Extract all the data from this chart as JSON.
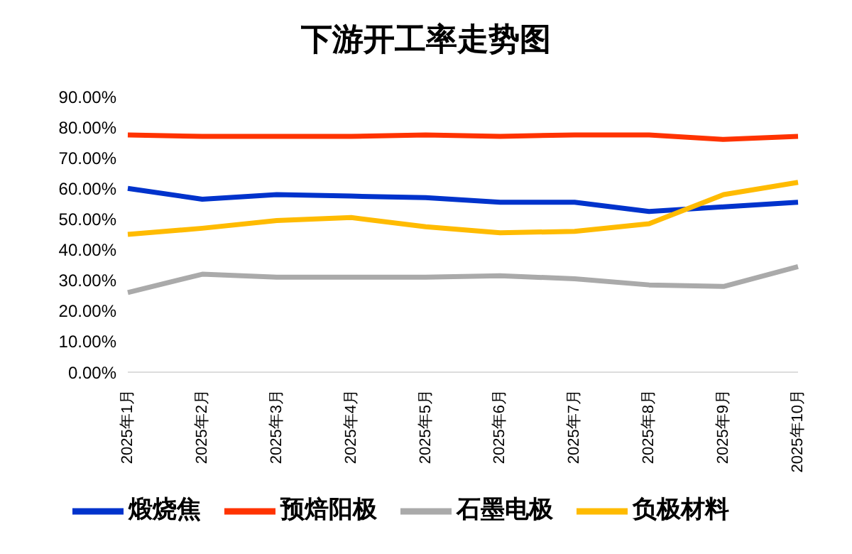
{
  "chart_data": {
    "type": "line",
    "title": "下游开工率走势图",
    "categories": [
      "2025年1月",
      "2025年2月",
      "2025年3月",
      "2025年4月",
      "2025年5月",
      "2025年6月",
      "2025年7月",
      "2025年8月",
      "2025年9月",
      "2025年10月"
    ],
    "series": [
      {
        "name": "煅烧焦",
        "color": "#0033cc",
        "values": [
          60,
          56.5,
          58,
          57.5,
          57,
          55.5,
          55.5,
          52.5,
          54,
          55.5
        ]
      },
      {
        "name": "预焙阳极",
        "color": "#ff3300",
        "values": [
          77.5,
          77,
          77,
          77,
          77.5,
          77,
          77.5,
          77.5,
          76,
          77
        ]
      },
      {
        "name": "石墨电极",
        "color": "#aaaaaa",
        "values": [
          26,
          32,
          31,
          31,
          31,
          31.5,
          30.5,
          28.5,
          28,
          34.5
        ]
      },
      {
        "name": "负极材料",
        "color": "#ffbb00",
        "values": [
          45,
          47,
          49.5,
          50.5,
          47.5,
          45.5,
          46,
          48.5,
          58,
          62
        ]
      }
    ],
    "ylim": [
      0,
      90
    ],
    "yticks": [
      {
        "value": 0,
        "label": "0.00%"
      },
      {
        "value": 10,
        "label": "10.00%"
      },
      {
        "value": 20,
        "label": "20.00%"
      },
      {
        "value": 30,
        "label": "30.00%"
      },
      {
        "value": 40,
        "label": "40.00%"
      },
      {
        "value": 50,
        "label": "50.00%"
      },
      {
        "value": 60,
        "label": "60.00%"
      },
      {
        "value": 70,
        "label": "70.00%"
      },
      {
        "value": 80,
        "label": "80.00%"
      },
      {
        "value": 90,
        "label": "90.00%"
      }
    ],
    "legend": "bottom",
    "marker": "none",
    "line_style": "solid",
    "grid": false
  }
}
